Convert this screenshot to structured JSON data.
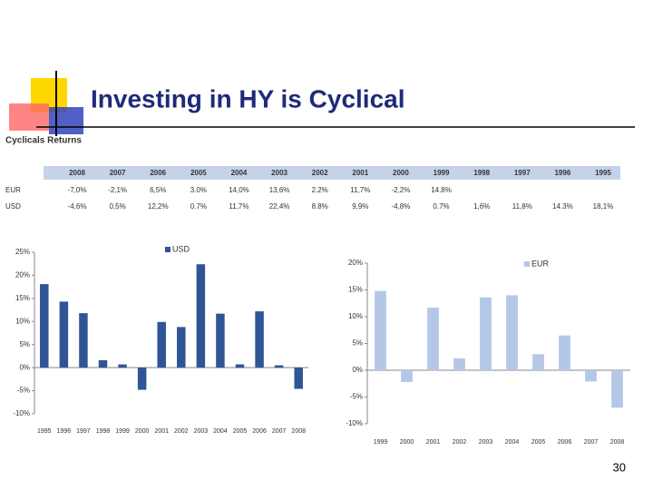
{
  "title": "Investing in HY is Cyclical",
  "subtitle": "Cyclicals Returns",
  "table": {
    "header": [
      "2008",
      "2007",
      "2006",
      "2005",
      "2004",
      "2003",
      "2002",
      "2001",
      "2000",
      "1999",
      "1998",
      "1997",
      "1996",
      "1995"
    ],
    "rows": [
      {
        "label": "EUR",
        "values": [
          "-7,0%",
          "-2,1%",
          "6,5%",
          "3.0%",
          "14,0%",
          "13,6%",
          "2.2%",
          "11,7%",
          "-2,2%",
          "14.8%"
        ]
      },
      {
        "label": "USD",
        "values": [
          "-4,6%",
          "0,5%",
          "12,2%",
          "0.7%",
          "11,7%",
          "22,4%",
          "8.8%",
          "9,9%",
          "-4,8%",
          "0.7%",
          "1,6%",
          "11,8%",
          "14.3%",
          "18,1%"
        ]
      }
    ]
  },
  "chart_data": [
    {
      "type": "bar",
      "categories": [
        "1995",
        "1996",
        "1997",
        "1998",
        "1999",
        "2000",
        "2001",
        "2002",
        "2003",
        "2004",
        "2005",
        "2006",
        "2007",
        "2008"
      ],
      "series": [
        {
          "name": "USD",
          "color": "#2f5597",
          "values": [
            18.1,
            14.3,
            11.8,
            1.6,
            0.7,
            -4.8,
            9.9,
            8.8,
            22.4,
            11.7,
            0.7,
            12.2,
            0.5,
            -4.6
          ]
        }
      ],
      "ylim": [
        -10,
        25
      ],
      "yticks": [
        {
          "value": -10,
          "label": "-10%"
        },
        {
          "value": -5,
          "label": "-5%"
        },
        {
          "value": 0,
          "label": "0%"
        },
        {
          "value": 5,
          "label": "5%"
        },
        {
          "value": 10,
          "label": "10%"
        },
        {
          "value": 15,
          "label": "15%"
        },
        {
          "value": 20,
          "label": "20%"
        },
        {
          "value": 25,
          "label": "25%"
        }
      ]
    },
    {
      "type": "bar",
      "categories": [
        "1999",
        "2000",
        "2001",
        "2002",
        "2003",
        "2004",
        "2005",
        "2006",
        "2007",
        "2008"
      ],
      "series": [
        {
          "name": "EUR",
          "color": "#b4c7e7",
          "values": [
            14.8,
            -2.2,
            11.7,
            2.2,
            13.6,
            14.0,
            3.0,
            6.5,
            -2.1,
            -7.0
          ]
        }
      ],
      "ylim": [
        -10,
        20
      ],
      "yticks": [
        {
          "value": -10,
          "label": "-10%"
        },
        {
          "value": -5,
          "label": "-5%"
        },
        {
          "value": 0,
          "label": "0%"
        },
        {
          "value": 5,
          "label": "5%"
        },
        {
          "value": 10,
          "label": "10%"
        },
        {
          "value": 15,
          "label": "15%"
        },
        {
          "value": 20,
          "label": "20%"
        }
      ]
    }
  ],
  "page_number": "30"
}
